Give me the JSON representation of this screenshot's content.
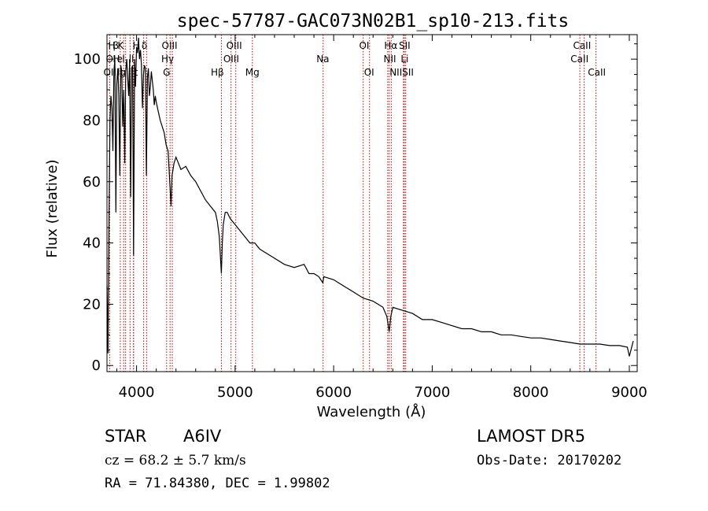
{
  "chart_data": {
    "type": "line",
    "title": "spec-57787-GAC073N02B1_sp10-213.fits",
    "xlabel": "Wavelength (Å)",
    "ylabel": "Flux (relative)",
    "xlim": [
      3700,
      9080
    ],
    "ylim": [
      -2,
      108
    ],
    "xticks": [
      4000,
      5000,
      6000,
      7000,
      8000,
      9000
    ],
    "yticks": [
      0,
      20,
      40,
      60,
      80,
      100
    ],
    "grid": false,
    "series": [
      {
        "x": [
          3700,
          3710,
          3720,
          3730,
          3740,
          3750,
          3760,
          3770,
          3780,
          3790,
          3800,
          3810,
          3820,
          3830,
          3840,
          3850,
          3860,
          3870,
          3880,
          3890,
          3900,
          3910,
          3920,
          3930,
          3940,
          3950,
          3960,
          3970,
          3980,
          3990,
          4000,
          4010,
          4020,
          4030,
          4040,
          4050,
          4060,
          4070,
          4080,
          4090,
          4100,
          4110,
          4120,
          4130,
          4140,
          4150,
          4160,
          4170,
          4180,
          4190,
          4200,
          4220,
          4240,
          4260,
          4280,
          4300,
          4320,
          4340,
          4350,
          4360,
          4380,
          4400,
          4450,
          4500,
          4550,
          4600,
          4650,
          4700,
          4750,
          4800,
          4820,
          4840,
          4850,
          4861,
          4870,
          4880,
          4900,
          4920,
          4950,
          5000,
          5050,
          5100,
          5150,
          5200,
          5250,
          5300,
          5350,
          5400,
          5500,
          5600,
          5700,
          5750,
          5800,
          5850,
          5890,
          5900,
          6000,
          6100,
          6200,
          6300,
          6400,
          6500,
          6540,
          6563,
          6580,
          6600,
          6700,
          6800,
          6900,
          7000,
          7100,
          7200,
          7300,
          7400,
          7500,
          7600,
          7700,
          7800,
          7900,
          8000,
          8100,
          8200,
          8300,
          8400,
          8500,
          8600,
          8700,
          8800,
          8900,
          8980,
          9000,
          9040
        ],
        "y": [
          26,
          4,
          45,
          80,
          88,
          84,
          70,
          96,
          100,
          50,
          92,
          97,
          88,
          62,
          98,
          96,
          78,
          90,
          66,
          96,
          100,
          94,
          88,
          100,
          55,
          97,
          98,
          36,
          100,
          91,
          104,
          102,
          107,
          100,
          103,
          98,
          84,
          95,
          98,
          97,
          62,
          94,
          97,
          88,
          91,
          96,
          93,
          90,
          85,
          88,
          86,
          83,
          80,
          78,
          76,
          72,
          70,
          58,
          52,
          62,
          66,
          68,
          64,
          65,
          62,
          60,
          57,
          54,
          52,
          50,
          47,
          42,
          36,
          30,
          40,
          46,
          50,
          50,
          48,
          46,
          44,
          42,
          40,
          40,
          38,
          37,
          36,
          35,
          33,
          32,
          33,
          30,
          30,
          29,
          27,
          29,
          28,
          26,
          24,
          22,
          21,
          19,
          16,
          11,
          16,
          19,
          18,
          17,
          15,
          15,
          14,
          13,
          12,
          12,
          11,
          11,
          10,
          10,
          9.5,
          9,
          9,
          8.5,
          8,
          7.5,
          7,
          7,
          7,
          6.5,
          6.5,
          6,
          3,
          8
        ]
      }
    ],
    "lines": [
      {
        "name": "Hε",
        "x": 3970
      },
      {
        "name": "Hζ",
        "x": 3889
      },
      {
        "name": "K",
        "x": 3934
      },
      {
        "name": "H",
        "x": 3969
      },
      {
        "name": "OII",
        "x": 3727
      },
      {
        "name": "NeIII",
        "x": 3869
      },
      {
        "name": "Hη",
        "x": 3835
      },
      {
        "name": "SII",
        "x": 4072
      },
      {
        "name": "Hδ",
        "x": 4102
      },
      {
        "name": "OIII",
        "x": 4363
      },
      {
        "name": "Hγ",
        "x": 4340
      },
      {
        "name": "G",
        "x": 4305
      },
      {
        "name": "Hβ",
        "x": 4861
      },
      {
        "name": "OIII",
        "x": 4959
      },
      {
        "name": "OIII",
        "x": 5007
      },
      {
        "name": "Mg",
        "x": 5175
      },
      {
        "name": "Na",
        "x": 5893
      },
      {
        "name": "OI",
        "x": 6300
      },
      {
        "name": "OI",
        "x": 6364
      },
      {
        "name": "Hα",
        "x": 6563
      },
      {
        "name": "NII",
        "x": 6548
      },
      {
        "name": "NII",
        "x": 6584
      },
      {
        "name": "SII",
        "x": 6717
      },
      {
        "name": "SII",
        "x": 6731
      },
      {
        "name": "Li",
        "x": 6708
      },
      {
        "name": "CaII",
        "x": 8498
      },
      {
        "name": "CaII",
        "x": 8542
      },
      {
        "name": "CaII",
        "x": 8662
      }
    ]
  },
  "labels": {
    "row1": [
      {
        "text": "H",
        "x": 3748
      },
      {
        "text": "β",
        "x": 3790
      },
      {
        "text": "K",
        "x": 3838
      },
      {
        "text": "H",
        "x": 3996
      },
      {
        "text": "δ",
        "x": 4080
      },
      {
        "text": "OIII",
        "x": 4335
      },
      {
        "text": "OIII",
        "x": 4990
      },
      {
        "text": "OI",
        "x": 6310
      },
      {
        "text": "Hα",
        "x": 6580
      },
      {
        "text": "SII",
        "x": 6720
      },
      {
        "text": "CaII",
        "x": 8520
      }
    ],
    "row2": [
      {
        "text": "OI",
        "x": 3740
      },
      {
        "text": "H",
        "x": 3795
      },
      {
        "text": "e",
        "x": 3830
      },
      {
        "text": "I",
        "x": 3868
      },
      {
        "text": "ll",
        "x": 3948
      },
      {
        "text": "Hγ",
        "x": 4315
      },
      {
        "text": "OIII",
        "x": 4960
      },
      {
        "text": "Na",
        "x": 5890
      },
      {
        "text": "NII",
        "x": 6570
      },
      {
        "text": "Li",
        "x": 6720
      },
      {
        "text": "CaII",
        "x": 8495
      }
    ],
    "row3": [
      {
        "text": "OII",
        "x": 3730
      },
      {
        "text": "lg",
        "x": 3848
      },
      {
        "text": "t",
        "x": 3995
      },
      {
        "text": "G",
        "x": 4305
      },
      {
        "text": "Hβ",
        "x": 4820
      },
      {
        "text": "Mg",
        "x": 5175
      },
      {
        "text": "OI",
        "x": 6360
      },
      {
        "text": "NIISII",
        "x": 6690
      },
      {
        "text": "CaII",
        "x": 8670
      }
    ]
  },
  "info": {
    "class_label": "STAR",
    "subclass": "A6IV",
    "survey": "LAMOST  DR5",
    "cz": "cz = 68.2 ± 5.7 km/s",
    "obs_date": "Obs-Date: 20170202",
    "radec": "RA =  71.84380, DEC =   1.99802"
  }
}
